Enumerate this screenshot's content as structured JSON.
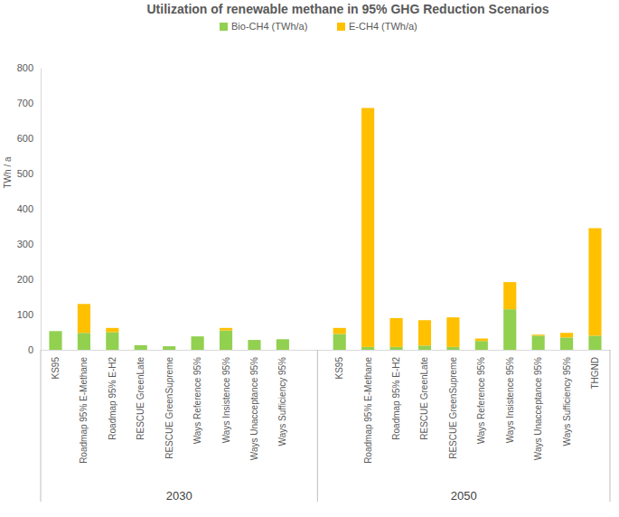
{
  "chart_data": {
    "type": "bar",
    "title": "Utilization of renewable methane in 95% GHG Reduction Scenarios",
    "y_label": "TWh / a",
    "stacked": true,
    "legend": "top",
    "grid": false,
    "categories": [
      "KS95",
      "Roadmap 95% E-Methane",
      "Roadmap 95% E-H2",
      "RESCUE GreenLate",
      "RESCUE GreenSupreme",
      "Ways Reference 95%",
      "Ways Insistence 95%",
      "Ways Unacceptance 95%",
      "Ways Sufficiency 95%",
      "KS95",
      "Roadmap 95% E-Methane",
      "Roadmap 95% E-H2",
      "RESCUE GreenLate",
      "RESCUE GreenSupreme",
      "Ways Reference 95%",
      "Ways Insistence 95%",
      "Ways Unacceptance 95%",
      "Ways Sufficiency 95%",
      "THGND"
    ],
    "category_groups": [
      "2030",
      "2030",
      "2030",
      "2030",
      "2030",
      "2030",
      "2030",
      "2030",
      "2030",
      "2050",
      "2050",
      "2050",
      "2050",
      "2050",
      "2050",
      "2050",
      "2050",
      "2050",
      "2050"
    ],
    "series": [
      {
        "name": "Bio-CH4 (TWh/a)",
        "color": "#92d050",
        "values": [
          53,
          48,
          50,
          13,
          10,
          38,
          55,
          28,
          30,
          45,
          8,
          8,
          12,
          8,
          25,
          115,
          40,
          35,
          40
        ]
      },
      {
        "name": "E-CH4 (TWh/a)",
        "color": "#ffc000",
        "values": [
          0,
          82,
          12,
          0,
          0,
          0,
          7,
          0,
          0,
          17,
          678,
          82,
          72,
          84,
          7,
          77,
          3,
          13,
          305
        ]
      }
    ],
    "ylim": [
      0,
      800
    ],
    "yticks": [
      0,
      100,
      200,
      300,
      400,
      500,
      600,
      700,
      800
    ]
  }
}
